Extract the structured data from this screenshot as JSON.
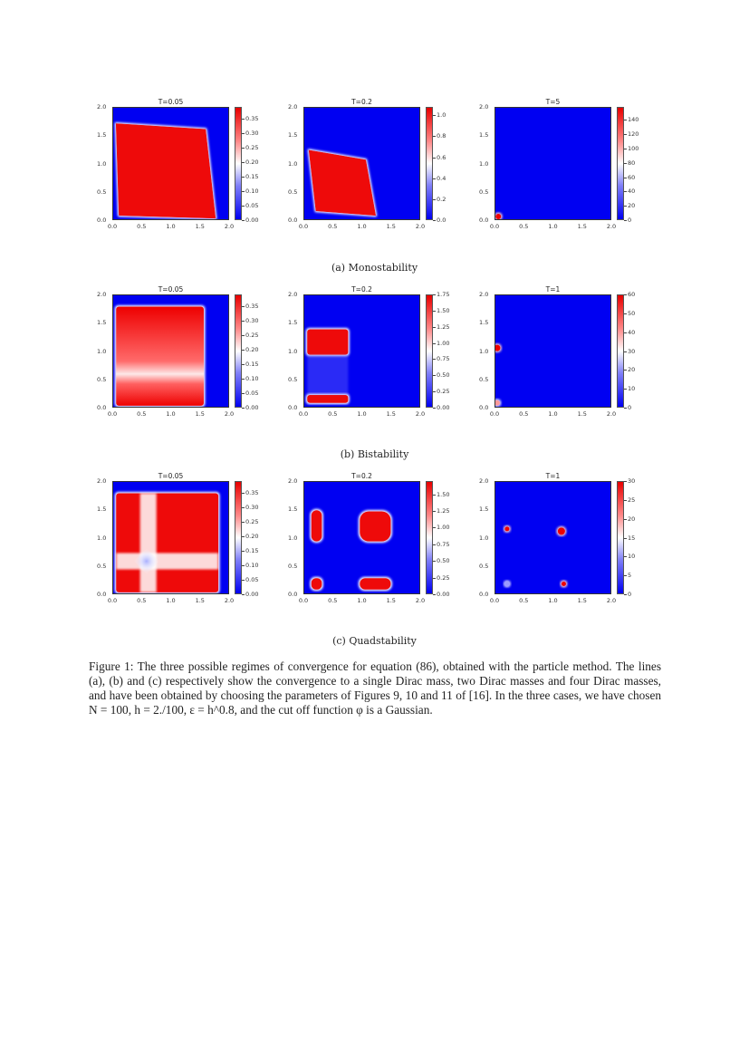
{
  "figure": {
    "label": "Figure 1",
    "caption": "Figure 1: The three possible regimes of convergence for equation (86), obtained with the particle method. The lines (a), (b) and (c) respectively show the convergence to a single Dirac mass, two Dirac masses and four Dirac masses, and have been obtained by choosing the parameters of Figures 9, 10 and 11 of [16]. In the three cases, we have chosen N = 100, h = 2./100, ε = h^0.8, and the cut off function φ is a Gaussian."
  },
  "rows": [
    {
      "subcaption": "(a) Monostability"
    },
    {
      "subcaption": "(b) Bistability"
    },
    {
      "subcaption": "(c) Quadstability"
    }
  ],
  "axis_ticks": {
    "x": [
      "0.0",
      "0.5",
      "1.0",
      "1.5",
      "2.0"
    ],
    "y": [
      "0.0",
      "0.5",
      "1.0",
      "1.5",
      "2.0"
    ]
  },
  "chart_data": [
    {
      "type": "heatmap",
      "row": "a",
      "title": "T=0.05",
      "xlim": [
        0,
        2
      ],
      "ylim": [
        0,
        2
      ],
      "colormap": "bwr",
      "colorbar_ticks": [
        "0.00",
        "0.05",
        "0.10",
        "0.15",
        "0.20",
        "0.25",
        "0.30",
        "0.35"
      ],
      "colorbar_range": [
        0,
        0.39
      ],
      "description": "Large near-square red region from ~(0.05,0.05) to (1.6-1.75,1.6-1.75)"
    },
    {
      "type": "heatmap",
      "row": "a",
      "title": "T=0.2",
      "xlim": [
        0,
        2
      ],
      "ylim": [
        0,
        2
      ],
      "colormap": "bwr",
      "colorbar_ticks": [
        "0.0",
        "0.2",
        "0.4",
        "0.6",
        "0.8",
        "1.0"
      ],
      "colorbar_range": [
        0,
        1.08
      ],
      "description": "Red region contracted to ~(0.1-1.2, 0.1-1.25)"
    },
    {
      "type": "heatmap",
      "row": "a",
      "title": "T=5",
      "xlim": [
        0,
        2
      ],
      "ylim": [
        0,
        2
      ],
      "colormap": "bwr",
      "colorbar_ticks": [
        "0",
        "20",
        "40",
        "60",
        "80",
        "100",
        "120",
        "140"
      ],
      "colorbar_range": [
        0,
        158
      ],
      "description": "Single Dirac mass at ~(0.05,0.08)"
    },
    {
      "type": "heatmap",
      "row": "b",
      "title": "T=0.05",
      "xlim": [
        0,
        2
      ],
      "ylim": [
        0,
        2
      ],
      "colormap": "bwr",
      "colorbar_ticks": [
        "0.00",
        "0.05",
        "0.10",
        "0.15",
        "0.20",
        "0.25",
        "0.30",
        "0.35"
      ],
      "colorbar_range": [
        0,
        0.39
      ],
      "description": "Red rectangle 0.05-1.55 x 0.05-1.8 with lighter band around y=0.5"
    },
    {
      "type": "heatmap",
      "row": "b",
      "title": "T=0.2",
      "xlim": [
        0,
        2
      ],
      "ylim": [
        0,
        2
      ],
      "colormap": "bwr",
      "colorbar_ticks": [
        "0.00",
        "0.25",
        "0.50",
        "0.75",
        "1.00",
        "1.25",
        "1.50",
        "1.75"
      ],
      "colorbar_range": [
        0,
        1.75
      ],
      "description": "Two red bands at x 0.05-0.75: y 0.95-1.4 and y 0.1-0.25"
    },
    {
      "type": "heatmap",
      "row": "b",
      "title": "T=1",
      "xlim": [
        0,
        2
      ],
      "ylim": [
        0,
        2
      ],
      "colormap": "bwr",
      "colorbar_ticks": [
        "0",
        "10",
        "20",
        "30",
        "40",
        "50",
        "60"
      ],
      "colorbar_range": [
        0,
        60
      ],
      "description": "Two Dirac masses at ~(0.03,1.07) and ~(0.03,0.1)"
    },
    {
      "type": "heatmap",
      "row": "c",
      "title": "T=0.05",
      "xlim": [
        0,
        2
      ],
      "ylim": [
        0,
        2
      ],
      "colormap": "bwr",
      "colorbar_ticks": [
        "0.00",
        "0.05",
        "0.10",
        "0.15",
        "0.20",
        "0.25",
        "0.30",
        "0.35"
      ],
      "colorbar_range": [
        0,
        0.39
      ],
      "description": "Red square 0.05-1.8 with white cross at x~0.6,y~0.6 and blue diamond at (0.55,0.6)"
    },
    {
      "type": "heatmap",
      "row": "c",
      "title": "T=0.2",
      "xlim": [
        0,
        2
      ],
      "ylim": [
        0,
        2
      ],
      "colormap": "bwr",
      "colorbar_ticks": [
        "0.00",
        "0.25",
        "0.50",
        "0.75",
        "1.00",
        "1.25",
        "1.50"
      ],
      "colorbar_range": [
        0,
        1.7
      ],
      "description": "Four red blobs: (0.2,1.25), (1.25,1.25), (0.2,0.2), (1.25,0.2)"
    },
    {
      "type": "heatmap",
      "row": "c",
      "title": "T=1",
      "xlim": [
        0,
        2
      ],
      "ylim": [
        0,
        2
      ],
      "colormap": "bwr",
      "colorbar_ticks": [
        "0",
        "5",
        "10",
        "15",
        "20",
        "25",
        "30"
      ],
      "colorbar_range": [
        0,
        30
      ],
      "description": "Four Dirac masses at ~(0.2,1.17), (1.13,1.13), (0.2,0.2), (1.17,0.2)"
    }
  ]
}
